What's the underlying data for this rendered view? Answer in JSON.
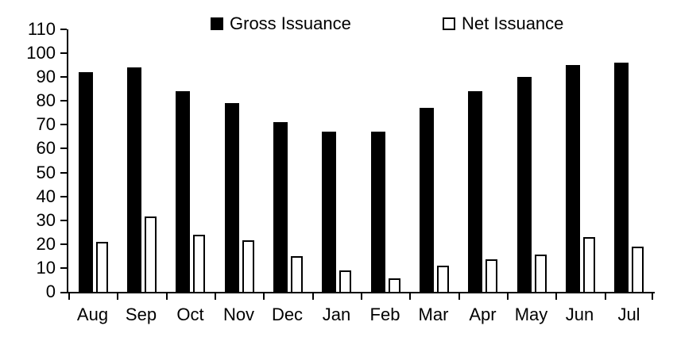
{
  "chart_data": {
    "type": "bar",
    "title": "",
    "xlabel": "",
    "ylabel": "",
    "categories": [
      "Aug",
      "Sep",
      "Oct",
      "Nov",
      "Dec",
      "Jan",
      "Feb",
      "Mar",
      "Apr",
      "May",
      "Jun",
      "Jul"
    ],
    "series": [
      {
        "name": "Gross Issuance",
        "style": "filled",
        "fill_color": "#000000",
        "border_color": "#000000",
        "values": [
          92,
          94,
          84,
          79,
          71,
          67,
          67,
          77,
          84,
          90,
          95,
          96
        ]
      },
      {
        "name": "Net Issuance",
        "style": "outlined",
        "fill_color": "#ffffff",
        "border_color": "#000000",
        "values": [
          21,
          31.5,
          24,
          21.5,
          15,
          9,
          5.5,
          11,
          13.5,
          15.5,
          23,
          19
        ]
      }
    ],
    "ylim": [
      0,
      110
    ],
    "yticks": [
      0,
      10,
      20,
      30,
      40,
      50,
      60,
      70,
      80,
      90,
      100,
      110
    ],
    "grid": false,
    "legend_position": "top",
    "axis_color": "#000000",
    "background_color": "#ffffff"
  },
  "legend": {
    "items": [
      {
        "label": "Gross Issuance",
        "swatch": "black-filled-square"
      },
      {
        "label": "Net Issuance",
        "swatch": "white-outlined-square"
      }
    ]
  }
}
